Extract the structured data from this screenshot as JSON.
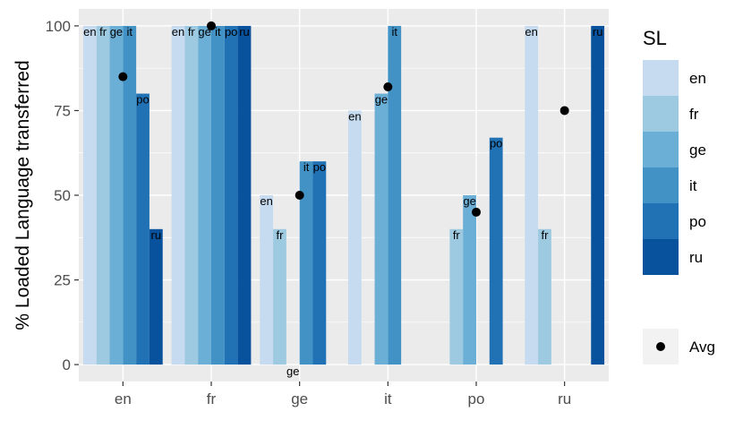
{
  "chart_data": {
    "type": "bar",
    "ylabel": "% Loaded Language transferred",
    "xlabel": "",
    "ylim": [
      -5,
      105
    ],
    "yticks": [
      0,
      25,
      50,
      75,
      100
    ],
    "categories": [
      "en",
      "fr",
      "ge",
      "it",
      "po",
      "ru"
    ],
    "series": [
      {
        "name": "en",
        "color": "#c6dbef",
        "values": [
          100,
          100,
          50,
          75,
          null,
          100
        ],
        "labels": [
          "en",
          "en",
          "en",
          "en",
          null,
          "en"
        ]
      },
      {
        "name": "fr",
        "color": "#9ecae1",
        "values": [
          100,
          100,
          40,
          null,
          40,
          40
        ],
        "labels": [
          "fr",
          "fr",
          "fr",
          null,
          "fr",
          "fr"
        ]
      },
      {
        "name": "ge",
        "color": "#6baed6",
        "values": [
          100,
          100,
          0,
          80,
          50,
          null
        ],
        "labels": [
          "ge",
          "ge",
          "ge",
          "ge",
          "ge",
          null
        ]
      },
      {
        "name": "it",
        "color": "#4292c6",
        "values": [
          100,
          100,
          60,
          100,
          null,
          null
        ],
        "labels": [
          "it",
          "it",
          "it",
          "it",
          null,
          null
        ]
      },
      {
        "name": "po",
        "color": "#2171b5",
        "values": [
          80,
          100,
          60,
          null,
          67,
          null
        ],
        "labels": [
          "po",
          "po",
          "po",
          null,
          "po",
          null
        ]
      },
      {
        "name": "ru",
        "color": "#08519c",
        "values": [
          40,
          100,
          null,
          null,
          null,
          100
        ],
        "labels": [
          "ru",
          "ru",
          null,
          null,
          null,
          "ru"
        ]
      }
    ],
    "avg": {
      "name": "Avg",
      "values": [
        85,
        100,
        50,
        82,
        45,
        75
      ]
    },
    "legend": {
      "title": "SL",
      "position": "right"
    },
    "grid": true
  }
}
